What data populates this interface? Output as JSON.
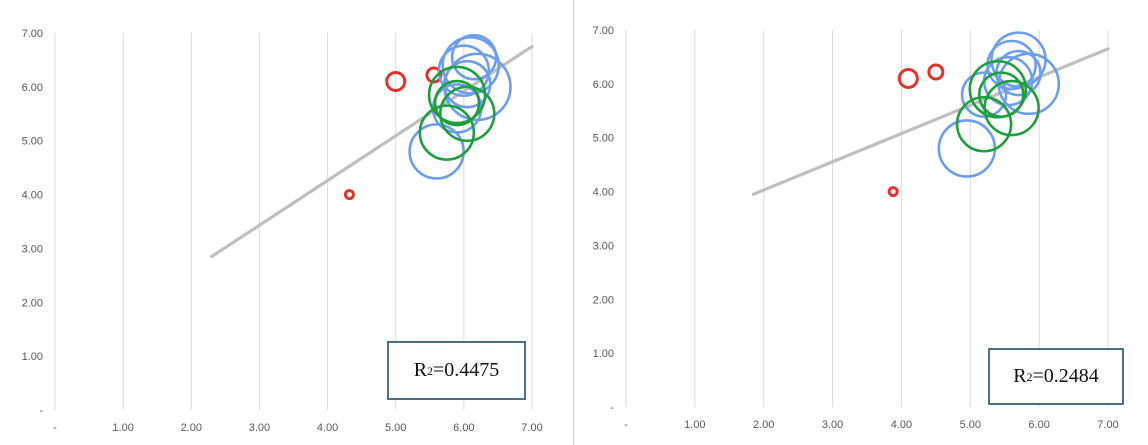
{
  "chart_data": [
    {
      "type": "scatter",
      "subtype": "bubble",
      "xlim": [
        0,
        7
      ],
      "ylim": [
        0,
        7
      ],
      "x_ticks": [
        "-",
        "1.00",
        "2.00",
        "3.00",
        "4.00",
        "5.00",
        "6.00",
        "7.00"
      ],
      "y_ticks": [
        "-",
        "1.00",
        "2.00",
        "3.00",
        "4.00",
        "5.00",
        "6.00",
        "7.00"
      ],
      "grid": "vertical",
      "trendline": {
        "x": [
          2.3,
          7.0
        ],
        "y": [
          2.85,
          6.75
        ],
        "color": "#bfbfbf"
      },
      "annotation": {
        "label": "R",
        "sup": "2",
        "value": "=0.4475"
      },
      "series": [
        {
          "color": "#e3322a",
          "points": [
            {
              "x": 4.32,
              "y": 4.0,
              "r": 4
            },
            {
              "x": 5.0,
              "y": 6.1,
              "r": 9
            },
            {
              "x": 5.56,
              "y": 6.22,
              "r": 7
            }
          ]
        },
        {
          "color": "#6d9eeb",
          "points": [
            {
              "x": 5.6,
              "y": 4.8,
              "r": 27
            },
            {
              "x": 5.9,
              "y": 5.6,
              "r": 24
            },
            {
              "x": 6.0,
              "y": 6.3,
              "r": 25
            },
            {
              "x": 6.1,
              "y": 6.4,
              "r": 28
            },
            {
              "x": 6.2,
              "y": 6.0,
              "r": 33
            },
            {
              "x": 6.05,
              "y": 6.05,
              "r": 23
            },
            {
              "x": 6.15,
              "y": 6.55,
              "r": 22
            }
          ]
        },
        {
          "color": "#1e9e3c",
          "points": [
            {
              "x": 5.75,
              "y": 5.15,
              "r": 27
            },
            {
              "x": 5.9,
              "y": 5.85,
              "r": 28
            },
            {
              "x": 6.05,
              "y": 5.5,
              "r": 27
            },
            {
              "x": 5.9,
              "y": 5.7,
              "r": 22
            }
          ]
        }
      ]
    },
    {
      "type": "scatter",
      "subtype": "bubble",
      "xlim": [
        0,
        7
      ],
      "ylim": [
        0,
        7
      ],
      "x_ticks": [
        "-",
        "1.00",
        "2.00",
        "3.00",
        "4.00",
        "5.00",
        "6.00",
        "7.00"
      ],
      "y_ticks": [
        "-",
        "1.00",
        "2.00",
        "3.00",
        "4.00",
        "5.00",
        "6.00",
        "7.00"
      ],
      "grid": "vertical",
      "trendline": {
        "x": [
          1.85,
          7.0
        ],
        "y": [
          3.95,
          6.65
        ],
        "color": "#bfbfbf"
      },
      "annotation": {
        "label": "R",
        "sup": "2",
        "value": "=0.2484"
      },
      "series": [
        {
          "color": "#e3322a",
          "points": [
            {
              "x": 3.88,
              "y": 4.0,
              "r": 4
            },
            {
              "x": 4.1,
              "y": 6.1,
              "r": 9
            },
            {
              "x": 4.5,
              "y": 6.22,
              "r": 7
            }
          ]
        },
        {
          "color": "#6d9eeb",
          "points": [
            {
              "x": 4.95,
              "y": 4.8,
              "r": 28
            },
            {
              "x": 5.2,
              "y": 5.8,
              "r": 22
            },
            {
              "x": 5.55,
              "y": 6.05,
              "r": 24
            },
            {
              "x": 5.6,
              "y": 6.35,
              "r": 24
            },
            {
              "x": 5.7,
              "y": 6.45,
              "r": 27
            },
            {
              "x": 5.85,
              "y": 6.0,
              "r": 30
            },
            {
              "x": 5.7,
              "y": 6.2,
              "r": 22
            }
          ]
        },
        {
          "color": "#1e9e3c",
          "points": [
            {
              "x": 5.2,
              "y": 5.25,
              "r": 27
            },
            {
              "x": 5.4,
              "y": 5.9,
              "r": 28
            },
            {
              "x": 5.6,
              "y": 5.55,
              "r": 27
            },
            {
              "x": 5.45,
              "y": 5.8,
              "r": 22
            }
          ]
        }
      ]
    }
  ]
}
